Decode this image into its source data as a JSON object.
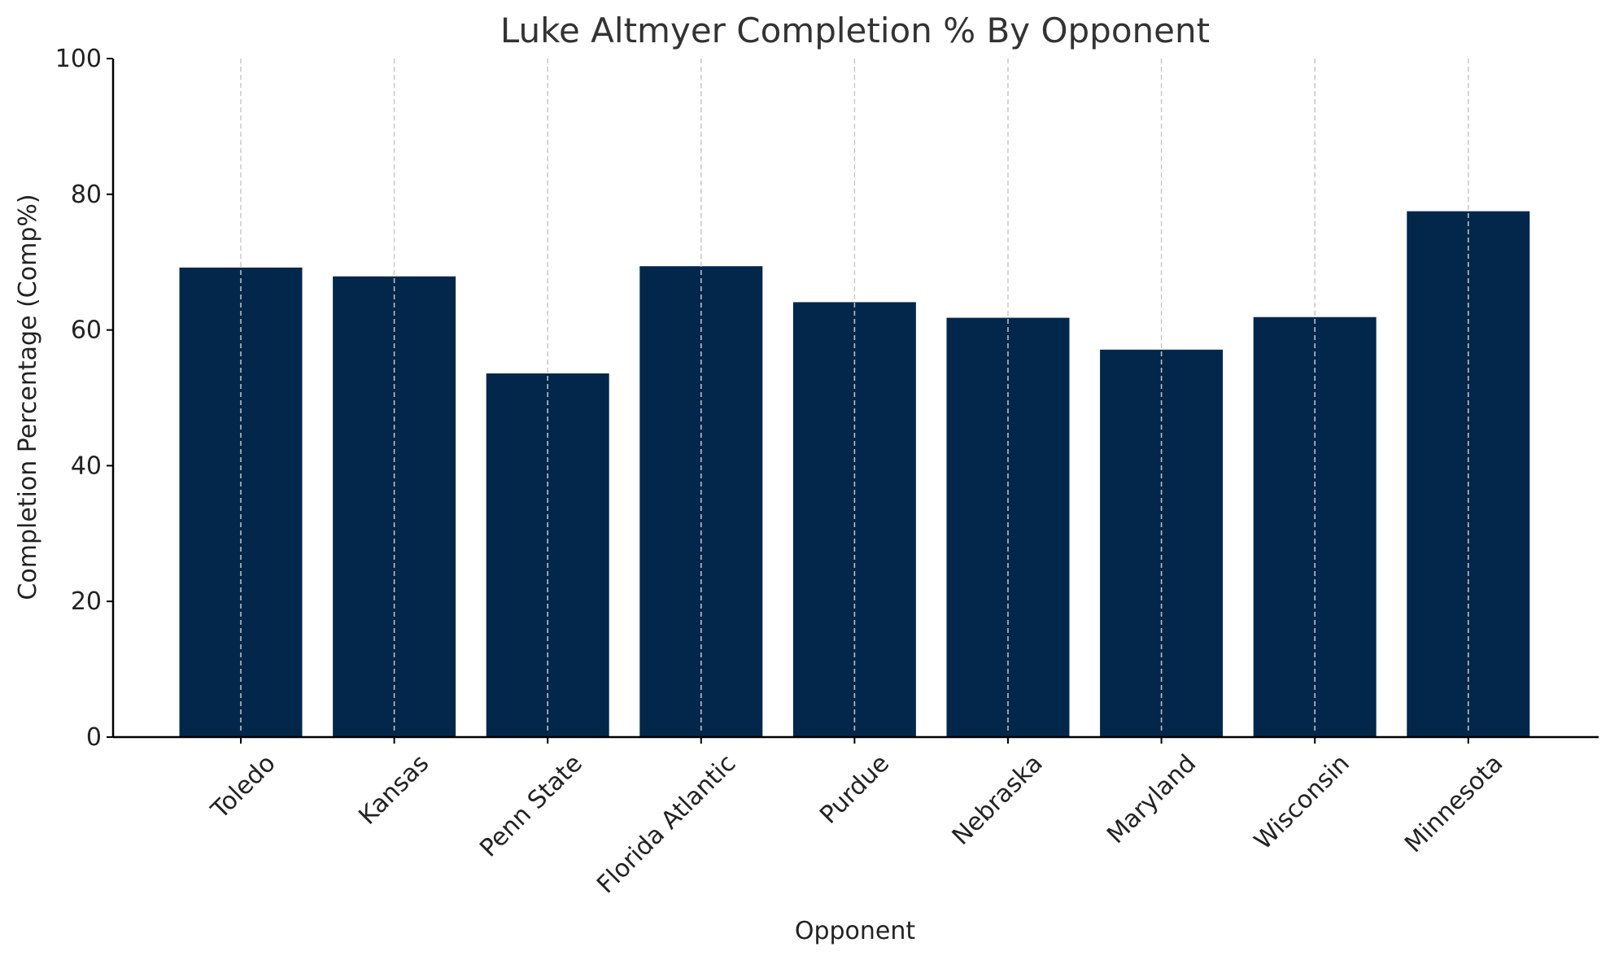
{
  "chart_data": {
    "type": "bar",
    "title": "Luke Altmyer Completion % By Opponent",
    "xlabel": "Opponent",
    "ylabel": "Completion Percentage (Comp%)",
    "categories": [
      "Toledo",
      "Kansas",
      "Penn State",
      "Florida Atlantic",
      "Purdue",
      "Nebraska",
      "Maryland",
      "Wisconsin",
      "Minnesota"
    ],
    "values": [
      69.2,
      67.9,
      53.6,
      69.4,
      64.1,
      61.8,
      57.1,
      61.9,
      77.5
    ],
    "ylim": [
      0,
      100
    ],
    "yticks": [
      0,
      20,
      40,
      60,
      80,
      100
    ],
    "bar_color": "#03274b",
    "grid": "x-dashed",
    "legend": "none"
  }
}
